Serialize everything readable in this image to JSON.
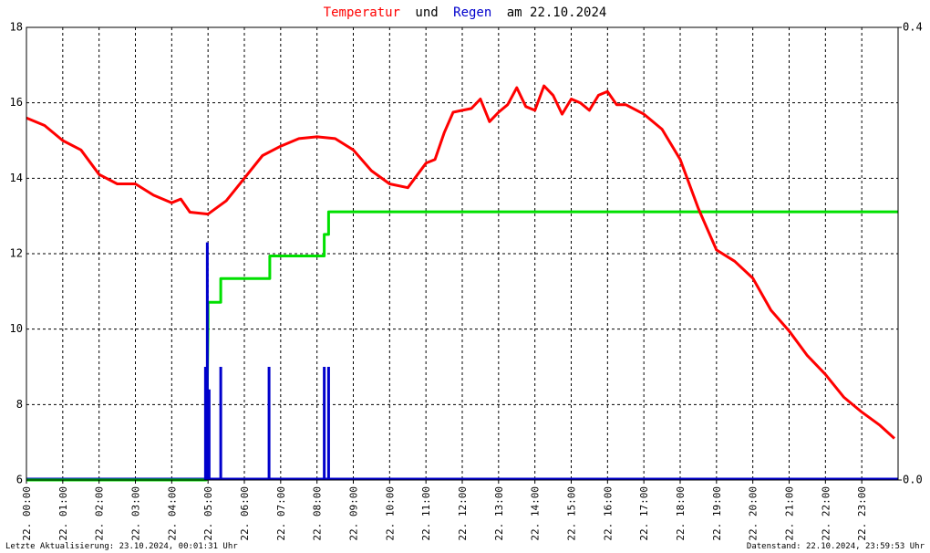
{
  "chart_data": {
    "type": "line",
    "title_words": [
      "und",
      "am 22.10.2024"
    ],
    "footer_left": "Letzte Aktualisierung: 23.10.2024, 00:01:31 Uhr",
    "footer_right": "Datenstand: 22.10.2024, 23:59:53 Uhr",
    "xlim": [
      0,
      24
    ],
    "xticks": [
      {
        "value": 0,
        "label": "22. 00:00"
      },
      {
        "value": 1,
        "label": "22. 01:00"
      },
      {
        "value": 2,
        "label": "22. 02:00"
      },
      {
        "value": 3,
        "label": "22. 03:00"
      },
      {
        "value": 4,
        "label": "22. 04:00"
      },
      {
        "value": 5,
        "label": "22. 05:00"
      },
      {
        "value": 6,
        "label": "22. 06:00"
      },
      {
        "value": 7,
        "label": "22. 07:00"
      },
      {
        "value": 8,
        "label": "22. 08:00"
      },
      {
        "value": 9,
        "label": "22. 09:00"
      },
      {
        "value": 10,
        "label": "22. 10:00"
      },
      {
        "value": 11,
        "label": "22. 11:00"
      },
      {
        "value": 12,
        "label": "22. 12:00"
      },
      {
        "value": 13,
        "label": "22. 13:00"
      },
      {
        "value": 14,
        "label": "22. 14:00"
      },
      {
        "value": 15,
        "label": "22. 15:00"
      },
      {
        "value": 16,
        "label": "22. 16:00"
      },
      {
        "value": 17,
        "label": "22. 17:00"
      },
      {
        "value": 18,
        "label": "22. 18:00"
      },
      {
        "value": 19,
        "label": "22. 19:00"
      },
      {
        "value": 20,
        "label": "22. 20:00"
      },
      {
        "value": 21,
        "label": "22. 21:00"
      },
      {
        "value": 22,
        "label": "22. 22:00"
      },
      {
        "value": 23,
        "label": "22. 23:00"
      }
    ],
    "ylim": [
      6,
      18
    ],
    "yticks": [
      6,
      8,
      10,
      12,
      14,
      16,
      18
    ],
    "y2lim": [
      0,
      0.4
    ],
    "y2ticks": [
      {
        "value": 0,
        "label": "0.0"
      },
      0.4
    ],
    "grid": true,
    "series": [
      {
        "name": "Temperatur",
        "color": "#ff0000",
        "kind": "line",
        "x": [
          0,
          0.5,
          1,
          1.5,
          2,
          2.5,
          3,
          3.5,
          4,
          4.25,
          4.5,
          5,
          5.5,
          6,
          6.5,
          7,
          7.5,
          8,
          8.5,
          9,
          9.5,
          10,
          10.5,
          11,
          11.25,
          11.5,
          11.75,
          12,
          12.25,
          12.5,
          12.75,
          13,
          13.25,
          13.5,
          13.75,
          14,
          14.25,
          14.5,
          14.75,
          15,
          15.25,
          15.5,
          15.75,
          16,
          16.25,
          16.5,
          17,
          17.5,
          18,
          18.5,
          19,
          19.5,
          20,
          20.5,
          21,
          21.5,
          22,
          22.5,
          23,
          23.5,
          23.9
        ],
        "values": [
          15.6,
          15.4,
          15,
          14.75,
          14.1,
          13.85,
          13.85,
          13.55,
          13.35,
          13.45,
          13.1,
          13.05,
          13.4,
          14,
          14.6,
          14.85,
          15.05,
          15.1,
          15.05,
          14.75,
          14.2,
          13.85,
          13.75,
          14.4,
          14.5,
          15.2,
          15.75,
          15.8,
          15.85,
          16.1,
          15.5,
          15.75,
          15.95,
          16.4,
          15.9,
          15.8,
          16.45,
          16.2,
          15.7,
          16.1,
          16,
          15.8,
          16.2,
          16.3,
          15.95,
          15.95,
          15.7,
          15.3,
          14.5,
          13.2,
          12.1,
          11.8,
          11.35,
          10.5,
          9.95,
          9.3,
          8.8,
          8.2,
          7.8,
          7.45,
          7.1
        ]
      },
      {
        "color": "#00e000",
        "kind": "line",
        "axis": "y2",
        "x": [
          0,
          4.95,
          5.0,
          5.0,
          5.35,
          5.35,
          6.7,
          6.7,
          8.2,
          8.2,
          8.32,
          8.32,
          24
        ],
        "values": [
          0,
          0,
          0.14,
          0.157,
          0.157,
          0.178,
          0.178,
          0.198,
          0.198,
          0.217,
          0.217,
          0.237,
          0.237
        ]
      },
      {
        "name": "Regen",
        "color": "#0000cc",
        "kind": "bar",
        "axis": "y2",
        "x": [
          4.93,
          4.98,
          5.03,
          5.35,
          6.68,
          8.2,
          8.32
        ],
        "values": [
          0.1,
          0.21,
          0.08,
          0.1,
          0.1,
          0.1,
          0.1
        ]
      }
    ]
  }
}
